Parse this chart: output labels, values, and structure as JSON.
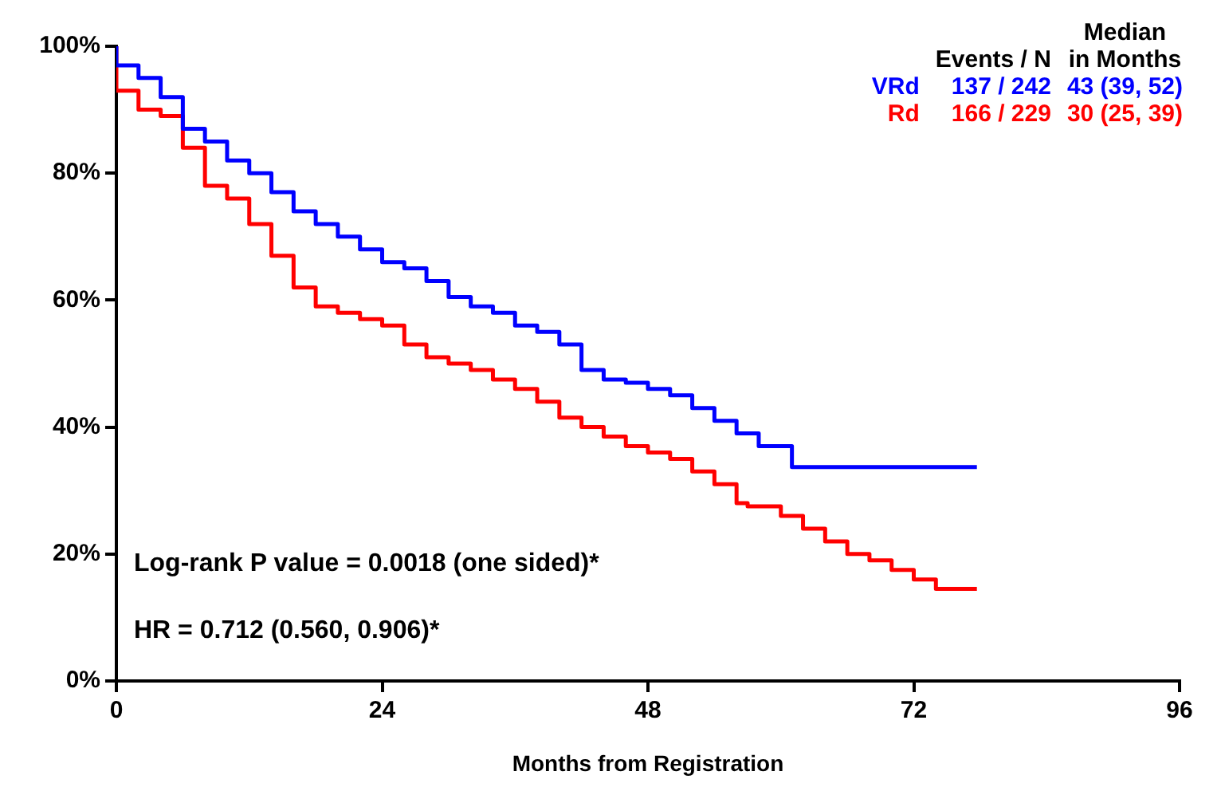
{
  "chart_data": {
    "type": "step",
    "xlabel": "Months from Registration",
    "xlim": [
      0,
      96
    ],
    "xticks": [
      0,
      24,
      48,
      72,
      96
    ],
    "ylim": [
      0,
      100
    ],
    "yticks": [
      {
        "value": 0,
        "label": "0%"
      },
      {
        "value": 20,
        "label": "20%"
      },
      {
        "value": 40,
        "label": "40%"
      },
      {
        "value": 60,
        "label": "60%"
      },
      {
        "value": 80,
        "label": "80%"
      },
      {
        "value": 100,
        "label": "100%"
      }
    ],
    "grid": false,
    "legend": "top right",
    "marker": "none",
    "line_style": "solid",
    "series": [
      {
        "name": "VRd",
        "color": "#0000ff",
        "x": [
          0,
          2,
          4,
          6,
          8,
          10,
          12,
          14,
          16,
          18,
          20,
          22,
          24,
          26,
          28,
          30,
          32,
          34,
          36,
          38,
          40,
          42,
          44,
          46,
          48,
          50,
          52,
          54,
          56,
          58,
          61,
          70.8,
          77.7
        ],
        "values": [
          100,
          97,
          95,
          92,
          87,
          85,
          82,
          80,
          77,
          74,
          72,
          70,
          68,
          66,
          65,
          63,
          60.5,
          59,
          58,
          56,
          55,
          53,
          49,
          47.5,
          47,
          46,
          45,
          43,
          41,
          39,
          37,
          33.7,
          33.7
        ]
      },
      {
        "name": "Rd",
        "color": "#ff0000",
        "x": [
          0,
          2,
          4,
          6,
          8,
          10,
          12,
          14,
          16,
          18,
          20,
          22,
          24,
          26,
          28,
          30,
          32,
          34,
          36,
          38,
          40,
          42,
          44,
          46,
          48,
          50,
          52,
          54,
          56,
          57,
          60,
          62,
          64,
          66,
          68,
          70,
          72,
          74,
          75.5,
          77.7
        ],
        "values": [
          100,
          93,
          90,
          89,
          84,
          78,
          76,
          72,
          67,
          62,
          59,
          58,
          57,
          56,
          53,
          51,
          50,
          49,
          47.5,
          46,
          44,
          41.5,
          40,
          38.5,
          37,
          36,
          35,
          33,
          31,
          28,
          27.5,
          26,
          24,
          22,
          20,
          19,
          17.5,
          16,
          14.5,
          14.5
        ]
      }
    ],
    "annotations": [
      "Events / N",
      "Median\nin Months",
      "137 / 242",
      "43 (39, 52)",
      "166 / 229",
      "30 (25, 39)",
      "Log-rank P value = 0.0018 (one sided)*",
      "HR = 0.712 (0.560, 0.906)*"
    ]
  }
}
